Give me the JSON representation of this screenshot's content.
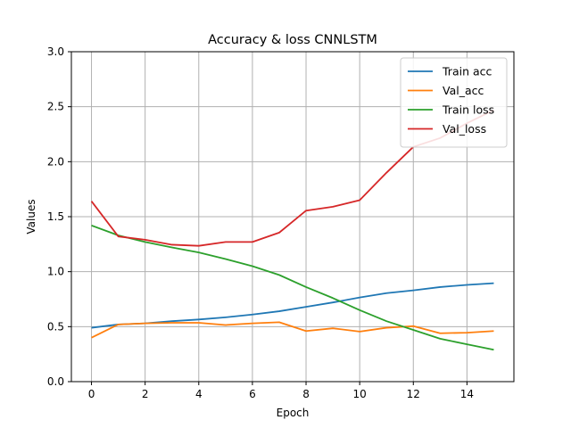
{
  "chart_data": {
    "type": "line",
    "title": "Accuracy & loss CNNLSTM",
    "xlabel": "Epoch",
    "ylabel": "Values",
    "xlim": [
      -0.75,
      15.75
    ],
    "ylim": [
      0,
      3.0
    ],
    "xticks": [
      0,
      2,
      4,
      6,
      8,
      10,
      12,
      14
    ],
    "yticks": [
      0.0,
      0.5,
      1.0,
      1.5,
      2.0,
      2.5,
      3.0
    ],
    "xtick_labels": [
      "0",
      "2",
      "4",
      "6",
      "8",
      "10",
      "12",
      "14"
    ],
    "ytick_labels": [
      "0.0",
      "0.5",
      "1.0",
      "1.5",
      "2.0",
      "2.5",
      "3.0"
    ],
    "grid": true,
    "legend_position": "top-right",
    "x": [
      0,
      1,
      2,
      3,
      4,
      5,
      6,
      7,
      8,
      9,
      10,
      11,
      12,
      13,
      14,
      15
    ],
    "series": [
      {
        "name": "Train acc",
        "color": "#1f77b4",
        "values": [
          0.49,
          0.52,
          0.53,
          0.55,
          0.565,
          0.585,
          0.61,
          0.64,
          0.68,
          0.72,
          0.765,
          0.805,
          0.83,
          0.86,
          0.88,
          0.895
        ]
      },
      {
        "name": "Val_acc",
        "color": "#ff7f0e",
        "values": [
          0.4,
          0.52,
          0.53,
          0.535,
          0.535,
          0.515,
          0.53,
          0.54,
          0.46,
          0.485,
          0.455,
          0.49,
          0.505,
          0.44,
          0.445,
          0.46
        ]
      },
      {
        "name": "Train loss",
        "color": "#2ca02c",
        "values": [
          1.42,
          1.33,
          1.27,
          1.22,
          1.175,
          1.115,
          1.05,
          0.97,
          0.86,
          0.76,
          0.65,
          0.55,
          0.47,
          0.39,
          0.34,
          0.29
        ]
      },
      {
        "name": "Val_loss",
        "color": "#d62728",
        "values": [
          1.64,
          1.32,
          1.29,
          1.245,
          1.235,
          1.27,
          1.27,
          1.355,
          1.555,
          1.59,
          1.65,
          1.9,
          2.135,
          2.215,
          2.35,
          2.47
        ]
      }
    ]
  }
}
